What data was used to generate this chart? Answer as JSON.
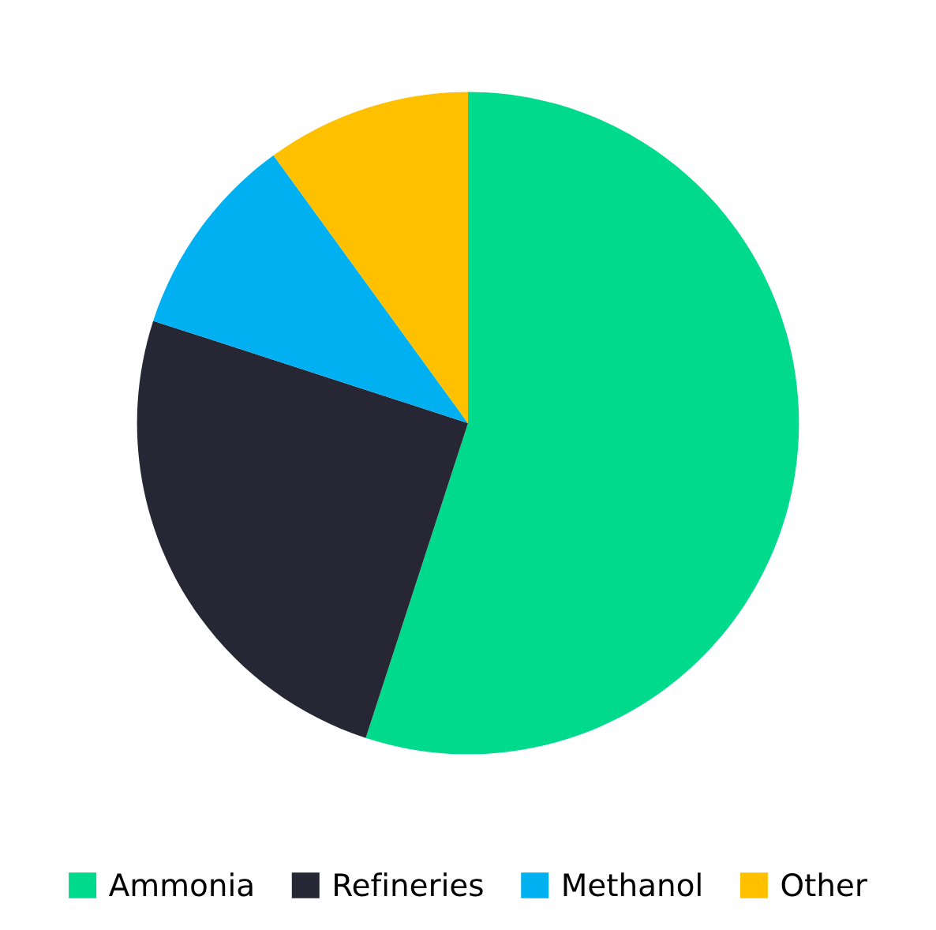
{
  "chart_data": {
    "type": "pie",
    "categories": [
      "Ammonia",
      "Refineries",
      "Methanol",
      "Other"
    ],
    "values": [
      55,
      25,
      10,
      10
    ],
    "colors": [
      "#00da8c",
      "#262634",
      "#00b0f0",
      "#ffc000"
    ],
    "legend": "bottom"
  }
}
